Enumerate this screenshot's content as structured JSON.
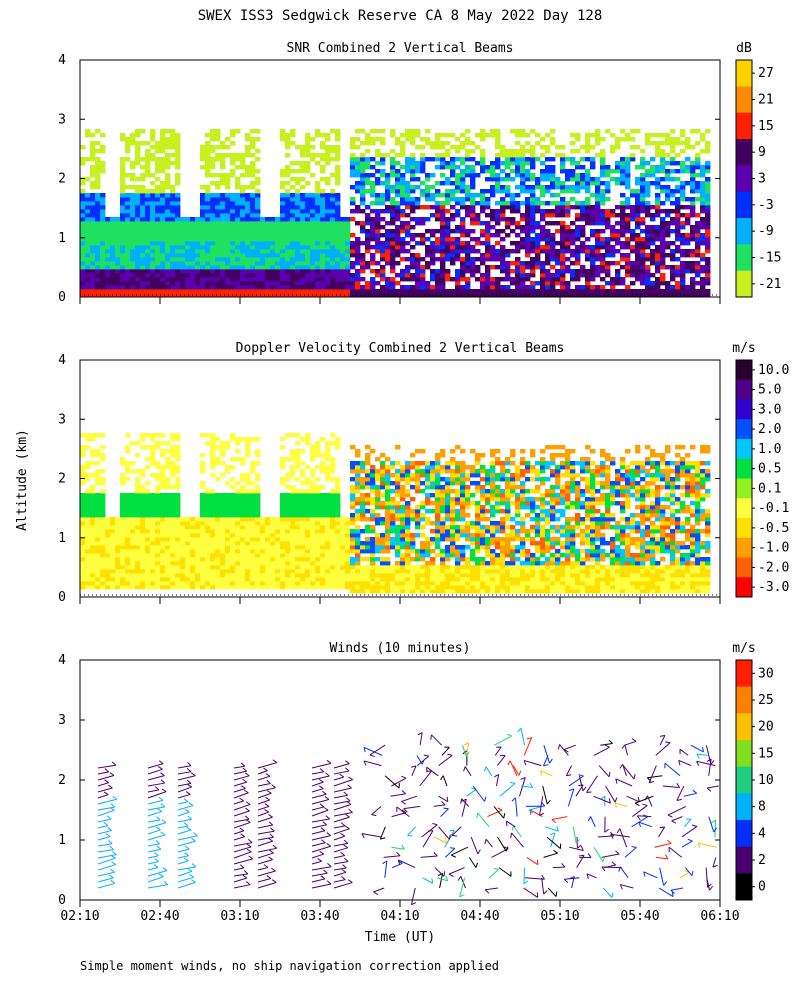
{
  "page": {
    "title": "SWEX ISS3 Sedgwick Reserve CA   8 May 2022 Day 128",
    "ylabel": "Altitude (km)",
    "xlabel": "Time (UT)",
    "footnote": "Simple moment winds, no ship navigation correction applied"
  },
  "chart_data": [
    {
      "type": "heatmap",
      "title": "SNR Combined 2 Vertical Beams",
      "ylabel": "Altitude (km)",
      "colorbar": {
        "unit": "dB",
        "ticks": [
          "27",
          "21",
          "15",
          "9",
          "3",
          "-3",
          "-9",
          "-15",
          "-21"
        ],
        "colors": [
          "#ffd000",
          "#ff8c00",
          "#ff2000",
          "#440060",
          "#5a00b0",
          "#0030ff",
          "#00b0ff",
          "#20e060",
          "#c8f020"
        ]
      },
      "x_range": [
        "02:10",
        "06:10"
      ],
      "y_range": [
        0,
        4
      ],
      "y_ticks": [
        0,
        1,
        2,
        3,
        4
      ],
      "x_ticks": [
        "02:10",
        "02:40",
        "03:10",
        "03:40",
        "04:10",
        "04:40",
        "05:10",
        "05:40",
        "06:10"
      ]
    },
    {
      "type": "heatmap",
      "title": "Doppler Velocity Combined 2 Vertical Beams",
      "colorbar": {
        "unit": "m/s",
        "ticks": [
          "10.0",
          "5.0",
          "3.0",
          "2.0",
          "1.0",
          "0.5",
          "0.1",
          "-0.1",
          "-0.5",
          "-1.0",
          "-2.0",
          "-3.0"
        ],
        "colors": [
          "#2a0030",
          "#50008a",
          "#3000d0",
          "#0050ff",
          "#00c8ff",
          "#00e040",
          "#90f020",
          "#ffff40",
          "#ffe000",
          "#ffa000",
          "#ff6000",
          "#ff0000"
        ]
      },
      "x_range": [
        "02:10",
        "06:10"
      ],
      "y_range": [
        0,
        4
      ],
      "y_ticks": [
        0,
        1,
        2,
        3,
        4
      ],
      "x_ticks": [
        "02:10",
        "02:40",
        "03:10",
        "03:40",
        "04:10",
        "04:40",
        "05:10",
        "05:40",
        "06:10"
      ]
    },
    {
      "type": "scatter",
      "title": "Winds (10 minutes)",
      "colorbar": {
        "unit": "m/s",
        "ticks": [
          "30",
          "25",
          "20",
          "15",
          "10",
          "8",
          "4",
          "2",
          "0"
        ],
        "colors": [
          "#ff2000",
          "#ff8000",
          "#ffc000",
          "#80e020",
          "#20d080",
          "#00b0ff",
          "#0030ff",
          "#4a0070",
          "#000000"
        ]
      },
      "x_range": [
        "02:10",
        "06:10"
      ],
      "y_range": [
        0,
        4
      ],
      "y_ticks": [
        0,
        1,
        2,
        3,
        4
      ],
      "x_ticks": [
        "02:10",
        "02:40",
        "03:10",
        "03:40",
        "04:10",
        "04:40",
        "05:10",
        "05:40",
        "06:10"
      ]
    }
  ]
}
